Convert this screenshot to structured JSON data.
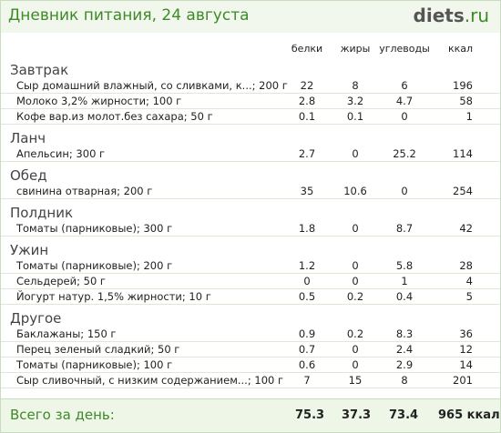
{
  "title": "Дневник питания, 24 августа",
  "logo": {
    "main": "diets",
    "suffix": ".ru"
  },
  "columns": [
    "белки",
    "жиры",
    "углеводы",
    "ккал"
  ],
  "meals": [
    {
      "name": "Завтрак",
      "items": [
        {
          "name": "Сыр домашний влажный, со сливками, к...; 200 г",
          "protein": "22",
          "fat": "8",
          "carbs": "6",
          "kcal": "196"
        },
        {
          "name": "Молоко 3,2% жирности; 100 г",
          "protein": "2.8",
          "fat": "3.2",
          "carbs": "4.7",
          "kcal": "58"
        },
        {
          "name": "Кофе вар.из молот.без сахара; 50 г",
          "protein": "0.1",
          "fat": "0.1",
          "carbs": "0",
          "kcal": "1"
        }
      ]
    },
    {
      "name": "Ланч",
      "items": [
        {
          "name": "Апельсин; 300 г",
          "protein": "2.7",
          "fat": "0",
          "carbs": "25.2",
          "kcal": "114"
        }
      ]
    },
    {
      "name": "Обед",
      "items": [
        {
          "name": "свинина отварная; 200 г",
          "protein": "35",
          "fat": "10.6",
          "carbs": "0",
          "kcal": "254"
        }
      ]
    },
    {
      "name": "Полдник",
      "items": [
        {
          "name": "Томаты (парниковые); 300 г",
          "protein": "1.8",
          "fat": "0",
          "carbs": "8.7",
          "kcal": "42"
        }
      ]
    },
    {
      "name": "Ужин",
      "items": [
        {
          "name": "Томаты (парниковые); 200 г",
          "protein": "1.2",
          "fat": "0",
          "carbs": "5.8",
          "kcal": "28"
        },
        {
          "name": "Сельдерей; 50 г",
          "protein": "0",
          "fat": "0",
          "carbs": "1",
          "kcal": "4"
        },
        {
          "name": "Йогурт натур. 1,5% жирности; 10 г",
          "protein": "0.5",
          "fat": "0.2",
          "carbs": "0.4",
          "kcal": "5"
        }
      ]
    },
    {
      "name": "Другое",
      "items": [
        {
          "name": "Баклажаны; 150 г",
          "protein": "0.9",
          "fat": "0.2",
          "carbs": "8.3",
          "kcal": "36"
        },
        {
          "name": "Перец зеленый сладкий; 50 г",
          "protein": "0.7",
          "fat": "0",
          "carbs": "2.4",
          "kcal": "12"
        },
        {
          "name": "Томаты (парниковые); 100 г",
          "protein": "0.6",
          "fat": "0",
          "carbs": "2.9",
          "kcal": "14"
        },
        {
          "name": "Сыр сливочный, с низким содержанием...; 100 г",
          "protein": "7",
          "fat": "15",
          "carbs": "8",
          "kcal": "201"
        }
      ]
    }
  ],
  "totals": {
    "label": "Всего за день:",
    "protein": "75.3",
    "fat": "37.3",
    "carbs": "73.4",
    "kcal": "965 ккал"
  }
}
